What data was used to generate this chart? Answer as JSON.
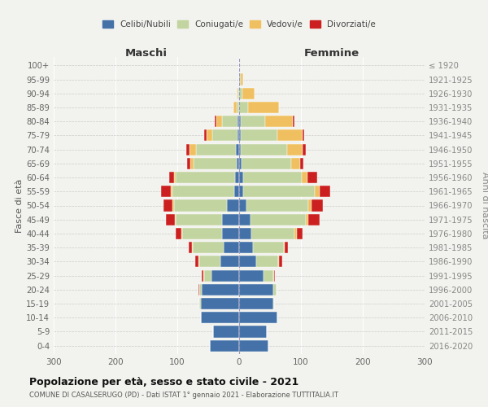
{
  "age_groups": [
    "0-4",
    "5-9",
    "10-14",
    "15-19",
    "20-24",
    "25-29",
    "30-34",
    "35-39",
    "40-44",
    "45-49",
    "50-54",
    "55-59",
    "60-64",
    "65-69",
    "70-74",
    "75-79",
    "80-84",
    "85-89",
    "90-94",
    "95-99",
    "100+"
  ],
  "birth_years": [
    "2016-2020",
    "2011-2015",
    "2006-2010",
    "2001-2005",
    "1996-2000",
    "1991-1995",
    "1986-1990",
    "1981-1985",
    "1976-1980",
    "1971-1975",
    "1966-1970",
    "1961-1965",
    "1956-1960",
    "1951-1955",
    "1946-1950",
    "1941-1945",
    "1936-1940",
    "1931-1935",
    "1926-1930",
    "1921-1925",
    "≤ 1920"
  ],
  "maschi": {
    "celibi": [
      47,
      42,
      62,
      62,
      60,
      45,
      30,
      25,
      27,
      27,
      20,
      8,
      7,
      4,
      5,
      3,
      2,
      0,
      0,
      0,
      0
    ],
    "coniugati": [
      0,
      0,
      0,
      3,
      5,
      12,
      35,
      50,
      65,
      75,
      85,
      100,
      95,
      70,
      65,
      40,
      25,
      4,
      2,
      0,
      0
    ],
    "vedovi": [
      0,
      0,
      0,
      0,
      0,
      1,
      1,
      1,
      2,
      2,
      3,
      3,
      3,
      5,
      10,
      10,
      10,
      5,
      2,
      0,
      0
    ],
    "divorziati": [
      0,
      0,
      0,
      0,
      1,
      2,
      5,
      5,
      8,
      15,
      15,
      15,
      8,
      5,
      5,
      3,
      3,
      0,
      0,
      0,
      0
    ]
  },
  "femmine": {
    "nubili": [
      48,
      45,
      62,
      55,
      55,
      40,
      28,
      22,
      20,
      18,
      12,
      7,
      6,
      4,
      3,
      2,
      2,
      0,
      0,
      0,
      0
    ],
    "coniugate": [
      0,
      0,
      0,
      2,
      5,
      15,
      35,
      50,
      70,
      90,
      100,
      115,
      95,
      80,
      75,
      60,
      40,
      15,
      5,
      2,
      0
    ],
    "vedove": [
      0,
      0,
      0,
      0,
      0,
      1,
      2,
      2,
      3,
      4,
      5,
      8,
      10,
      15,
      25,
      40,
      45,
      50,
      20,
      5,
      0
    ],
    "divorziate": [
      0,
      0,
      0,
      0,
      1,
      2,
      5,
      5,
      10,
      18,
      18,
      18,
      15,
      5,
      5,
      3,
      3,
      0,
      0,
      0,
      0
    ]
  },
  "colors": {
    "celibi": "#4472a8",
    "coniugati": "#c2d4a0",
    "vedovi": "#f0c060",
    "divorziati": "#cc2020"
  },
  "legend_labels": [
    "Celibi/Nubili",
    "Coniugati/e",
    "Vedovi/e",
    "Divorziati/e"
  ],
  "title": "Popolazione per età, sesso e stato civile - 2021",
  "subtitle": "COMUNE DI CASALSERUGO (PD) - Dati ISTAT 1° gennaio 2021 - Elaborazione TUTTITALIA.IT",
  "xlabel_left": "Maschi",
  "xlabel_right": "Femmine",
  "ylabel_left": "Fasce di età",
  "ylabel_right": "Anni di nascita",
  "xlim": 300,
  "background_color": "#f2f2ee"
}
